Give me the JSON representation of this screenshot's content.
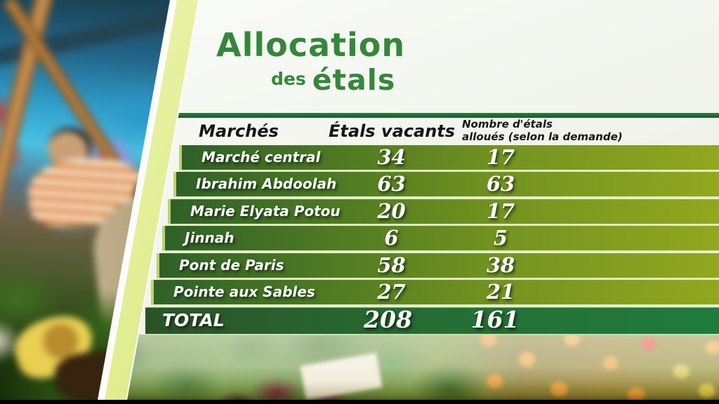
{
  "title": {
    "line1": "Allocation",
    "line2_small": "des",
    "line2_large": "étals"
  },
  "table": {
    "columns": {
      "market": "Marchés",
      "vacant": "Étals vacants",
      "allocated_line1": "Nombre d'étals",
      "allocated_line2": "alloués (selon la demande)"
    },
    "rows": [
      {
        "market": "Marché central",
        "vacant": "34",
        "allocated": "17"
      },
      {
        "market": "Ibrahim Abdoolah",
        "vacant": "63",
        "allocated": "63"
      },
      {
        "market": "Marie Elyata Potou",
        "vacant": "20",
        "allocated": "17"
      },
      {
        "market": "Jinnah",
        "vacant": "6",
        "allocated": "5"
      },
      {
        "market": "Pont de Paris",
        "vacant": "58",
        "allocated": "38"
      },
      {
        "market": "Pointe aux Sables",
        "vacant": "27",
        "allocated": "21"
      }
    ],
    "total": {
      "label": "TOTAL",
      "vacant": "208",
      "allocated": "161"
    }
  },
  "images": {
    "left_photo": "blurred market interior scene with vendors and produce",
    "bottom_strip": "faded photo strip of market produce (greens, beets, oranges, lemons)"
  },
  "colors": {
    "title_green": "#35873a",
    "header_bar_green": "#1e6330",
    "row_gradient_left": "#2f6128",
    "row_gradient_right": "#93a71f",
    "total_green": "#1e7c3d",
    "separator": "#e2eebe",
    "diagonal_band": "#d9e87e",
    "bottom_bar": "#000000",
    "text_white": "#ffffff",
    "header_text": "#161616"
  },
  "chart_data": {
    "type": "table",
    "title": "Allocation des étals",
    "columns": [
      "Marchés",
      "Étals vacants",
      "Nombre d'étals alloués (selon la demande)"
    ],
    "rows": [
      [
        "Marché central",
        34,
        17
      ],
      [
        "Ibrahim Abdoolah",
        63,
        63
      ],
      [
        "Marie Elyata Potou",
        20,
        17
      ],
      [
        "Jinnah",
        6,
        5
      ],
      [
        "Pont de Paris",
        58,
        38
      ],
      [
        "Pointe aux Sables",
        27,
        21
      ]
    ],
    "total_row": [
      "TOTAL",
      208,
      161
    ]
  }
}
